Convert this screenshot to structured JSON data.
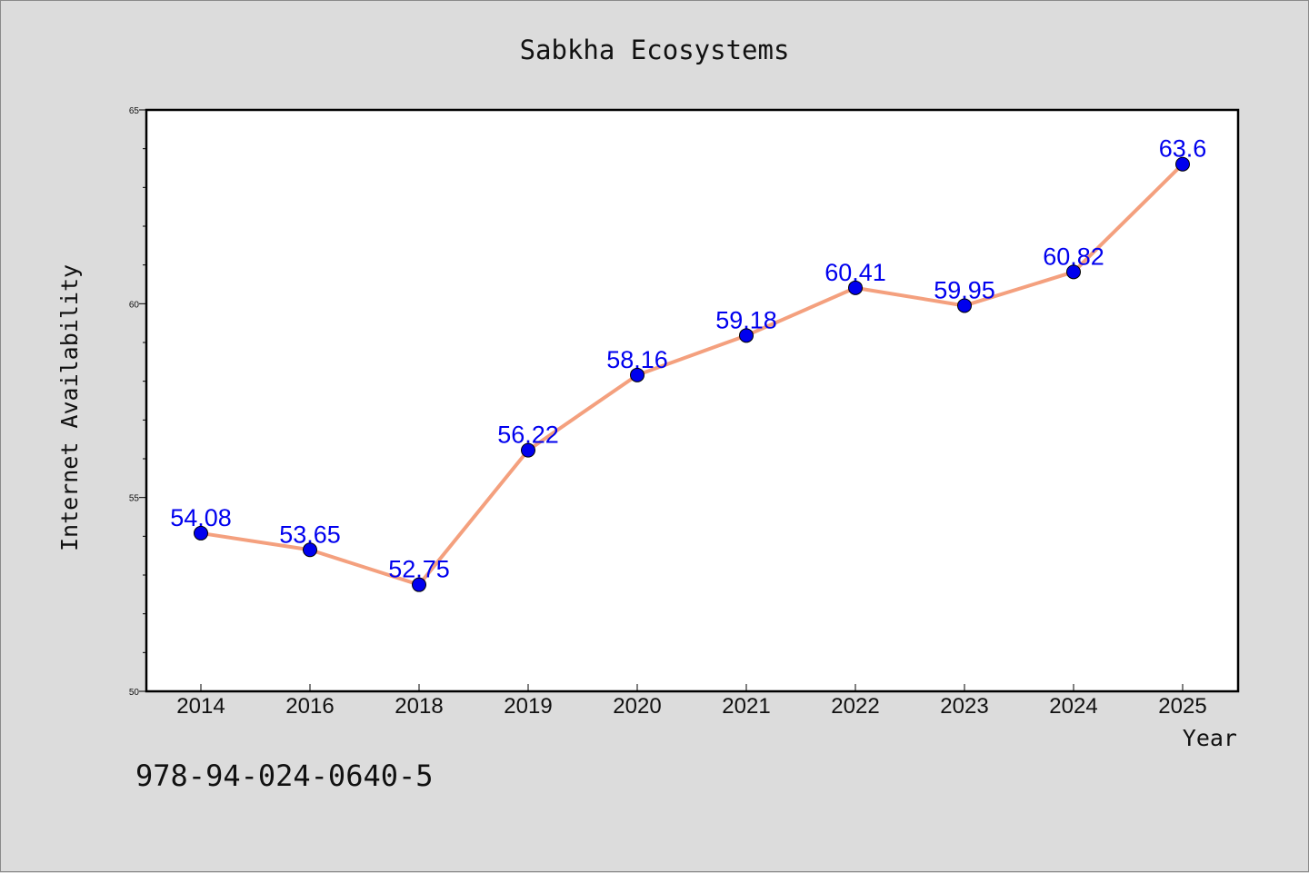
{
  "chart_data": {
    "type": "line",
    "title": "Sabkha Ecosystems",
    "xlabel": "Year",
    "ylabel": "Internet Availability",
    "categories": [
      "2014",
      "2016",
      "2018",
      "2019",
      "2020",
      "2021",
      "2022",
      "2023",
      "2024",
      "2025"
    ],
    "series": [
      {
        "values": [
          54.08,
          53.65,
          52.75,
          56.22,
          58.16,
          59.18,
          60.41,
          59.95,
          60.82,
          63.6
        ],
        "data_labels": [
          "54.08",
          "53.65",
          "52.75",
          "56.22",
          "58.16",
          "59.18",
          "60.41",
          "59.95",
          "60.82",
          "63.6"
        ],
        "line_color": "#f4a07e",
        "marker_color": "#0000ee",
        "label_color": "#0000ee"
      }
    ],
    "ylim": [
      50,
      65
    ],
    "yticks": [
      "50",
      "55",
      "60",
      "65"
    ],
    "grid": false,
    "legend": false
  },
  "footer_text": "978-94-024-0640-5",
  "colors": {
    "background": "#dcdcdc",
    "plot_background": "#ffffff"
  }
}
